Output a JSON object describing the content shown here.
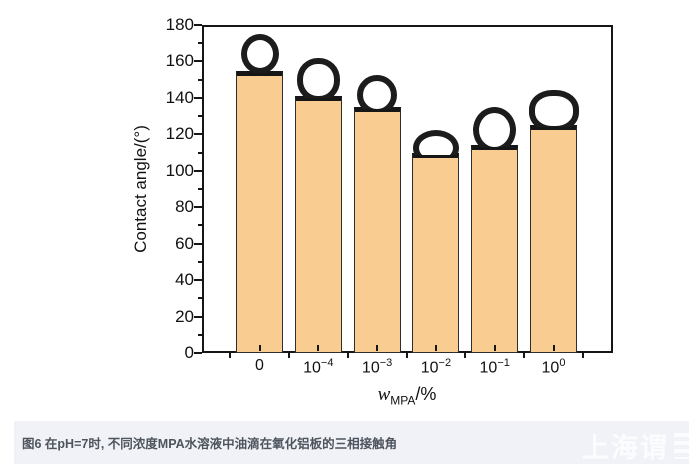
{
  "page": {
    "caption": "图6 在pH=7时, 不同浓度MPA水溶液中油滴在氧化铝板的三相接触角",
    "watermark": "上海谓"
  },
  "chart_data": {
    "type": "bar",
    "title": "",
    "categories": [
      "0",
      "10^-4",
      "10^-3",
      "10^-2",
      "10^-1",
      "10^0"
    ],
    "values": [
      155,
      141,
      135,
      110,
      114,
      125
    ],
    "xlabel": "w_MPA/%",
    "xlabel_parts": {
      "variable": "w",
      "subscript": "MPA",
      "suffix": "/%"
    },
    "ylabel": "Contact angle/(°)",
    "ylim": [
      0,
      180
    ],
    "yticks": [
      0,
      20,
      40,
      60,
      80,
      100,
      120,
      140,
      160,
      180
    ],
    "grid": false,
    "legend": null,
    "bar_color": "#f9cd92",
    "bar_edge_color": "#161616",
    "annotation": "oil droplet photograph shown above each bar"
  }
}
